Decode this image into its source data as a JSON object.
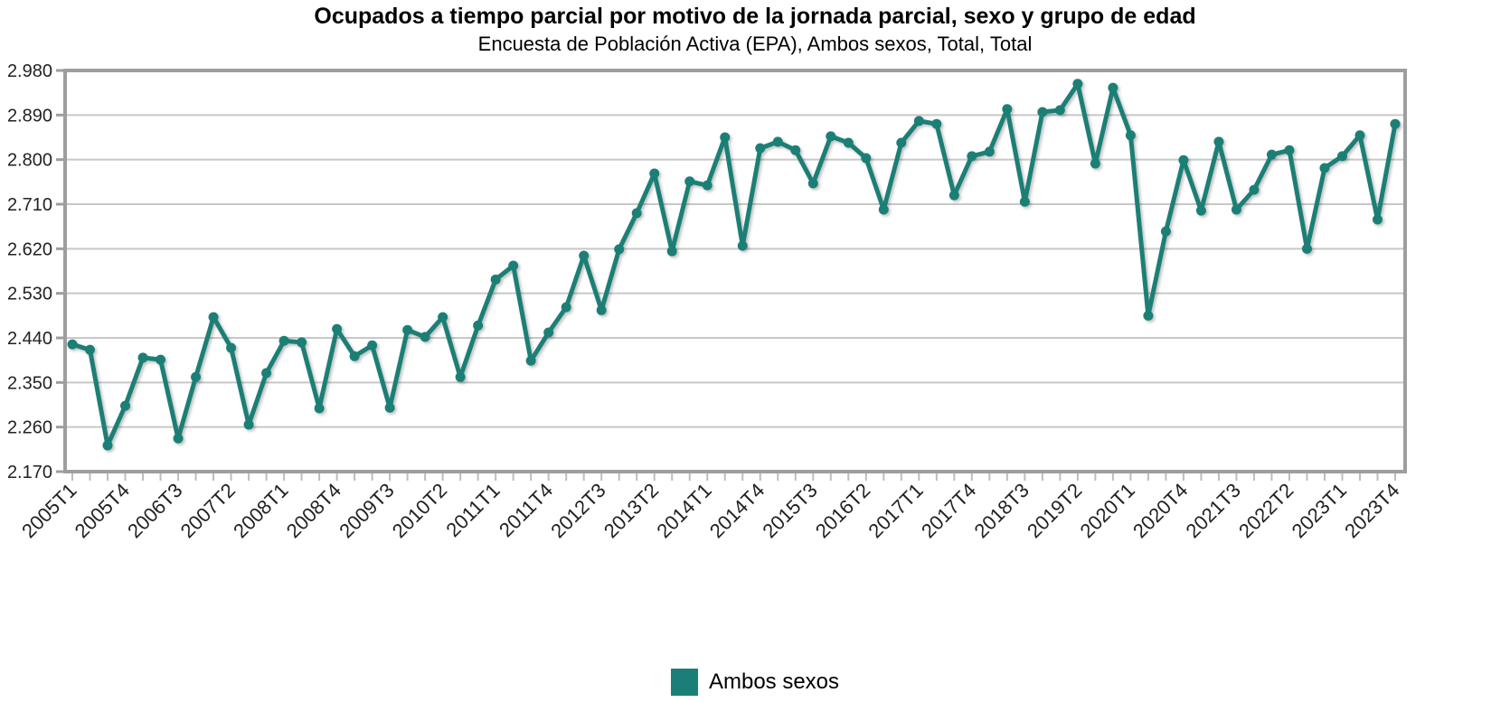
{
  "chart_data": {
    "type": "line",
    "title": "Ocupados a tiempo parcial por motivo de la jornada parcial, sexo y grupo de edad",
    "subtitle": "Encuesta de Población Activa (EPA), Ambos sexos, Total, Total",
    "xlabel": "",
    "ylabel": "",
    "ylim": [
      2.17,
      2.98
    ],
    "yticks": [
      "2.170",
      "2.260",
      "2.350",
      "2.440",
      "2.530",
      "2.620",
      "2.710",
      "2.800",
      "2.890",
      "2.980"
    ],
    "ytick_values": [
      2.17,
      2.26,
      2.35,
      2.44,
      2.53,
      2.62,
      2.71,
      2.8,
      2.89,
      2.98
    ],
    "grid": true,
    "legend_position": "bottom-center",
    "x": [
      "2005T1",
      "2005T2",
      "2005T3",
      "2005T4",
      "2006T1",
      "2006T2",
      "2006T3",
      "2006T4",
      "2007T1",
      "2007T2",
      "2007T3",
      "2007T4",
      "2008T1",
      "2008T2",
      "2008T3",
      "2008T4",
      "2009T1",
      "2009T2",
      "2009T3",
      "2009T4",
      "2010T1",
      "2010T2",
      "2010T3",
      "2010T4",
      "2011T1",
      "2011T2",
      "2011T3",
      "2011T4",
      "2012T1",
      "2012T2",
      "2012T3",
      "2012T4",
      "2013T1",
      "2013T2",
      "2013T3",
      "2013T4",
      "2014T1",
      "2014T2",
      "2014T3",
      "2014T4",
      "2015T1",
      "2015T2",
      "2015T3",
      "2015T4",
      "2016T1",
      "2016T2",
      "2016T3",
      "2016T4",
      "2017T1",
      "2017T2",
      "2017T3",
      "2017T4",
      "2018T1",
      "2018T2",
      "2018T3",
      "2018T4",
      "2019T1",
      "2019T2",
      "2019T3",
      "2019T4",
      "2020T1",
      "2020T2",
      "2020T3",
      "2020T4",
      "2021T1",
      "2021T2",
      "2021T3",
      "2021T4",
      "2022T1",
      "2022T2",
      "2022T3",
      "2022T4",
      "2023T1",
      "2023T2",
      "2023T3",
      "2023T4"
    ],
    "xtick_labels": [
      "2005T1",
      "2005T4",
      "2006T3",
      "2007T2",
      "2008T1",
      "2008T4",
      "2009T3",
      "2010T2",
      "2011T1",
      "2011T4",
      "2012T3",
      "2013T2",
      "2014T1",
      "2014T4",
      "2015T3",
      "2016T2",
      "2017T1",
      "2017T4",
      "2018T3",
      "2019T2",
      "2020T1",
      "2020T4",
      "2021T3",
      "2022T2",
      "2023T1",
      "2023T4"
    ],
    "series": [
      {
        "name": "Ambos sexos",
        "color": "#1a7f76",
        "values": [
          2.427,
          2.416,
          2.223,
          2.303,
          2.4,
          2.396,
          2.237,
          2.361,
          2.482,
          2.42,
          2.265,
          2.369,
          2.434,
          2.431,
          2.298,
          2.458,
          2.403,
          2.425,
          2.299,
          2.456,
          2.442,
          2.482,
          2.361,
          2.465,
          2.558,
          2.586,
          2.394,
          2.451,
          2.502,
          2.606,
          2.496,
          2.619,
          2.692,
          2.772,
          2.615,
          2.756,
          2.748,
          2.845,
          2.626,
          2.823,
          2.836,
          2.819,
          2.752,
          2.847,
          2.834,
          2.803,
          2.699,
          2.834,
          2.878,
          2.872,
          2.728,
          2.807,
          2.816,
          2.902,
          2.715,
          2.896,
          2.9,
          2.953,
          2.792,
          2.945,
          2.849,
          2.485,
          2.655,
          2.799,
          2.697,
          2.836,
          2.699,
          2.739,
          2.81,
          2.819,
          2.62,
          2.783,
          2.807,
          2.849,
          2.679,
          2.872
        ]
      }
    ]
  },
  "legend": {
    "label": "Ambos sexos",
    "color": "#1a7f76"
  }
}
